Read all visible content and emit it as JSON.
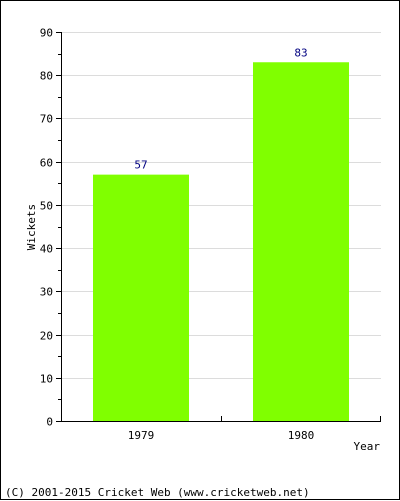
{
  "chart_data": {
    "type": "bar",
    "categories": [
      "1979",
      "1980"
    ],
    "values": [
      57,
      83
    ],
    "data_labels": [
      "57",
      "83"
    ],
    "title": "",
    "xlabel": "Year",
    "ylabel": "Wickets",
    "ylim": [
      0,
      90
    ],
    "yticks": [
      "0",
      "10",
      "20",
      "30",
      "40",
      "50",
      "60",
      "70",
      "80",
      "90"
    ],
    "grid": true,
    "bar_color": "#80ff00",
    "label_color": "#000080"
  },
  "footer": {
    "copyright": "(C) 2001-2015 Cricket Web (www.cricketweb.net)"
  }
}
